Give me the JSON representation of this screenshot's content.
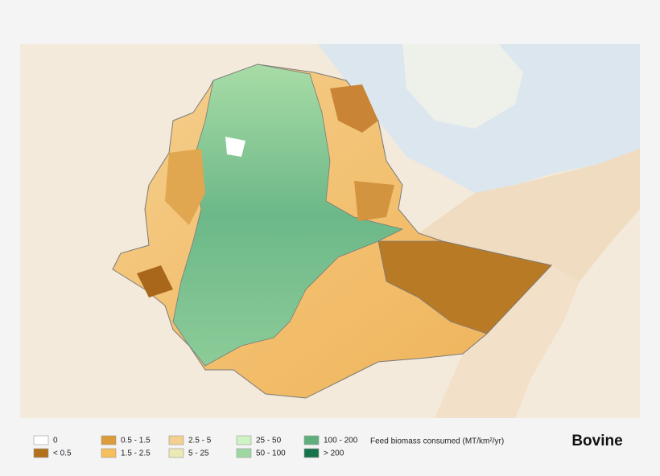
{
  "legend": {
    "title": "Feed biomass consumed (MT/km²/yr)",
    "items": [
      {
        "label": "0",
        "color": "#ffffff"
      },
      {
        "label": "< 0.5",
        "color": "#b26f1c"
      },
      {
        "label": "0.5 - 1.5",
        "color": "#dc9c3c"
      },
      {
        "label": "1.5 - 2.5",
        "color": "#f6be5c"
      },
      {
        "label": "2.5 - 5",
        "color": "#f4cf8e"
      },
      {
        "label": "5 - 25",
        "color": "#ede8b4"
      },
      {
        "label": "25 - 50",
        "color": "#cff2c2"
      },
      {
        "label": "50 - 100",
        "color": "#9fd7a2"
      },
      {
        "label": "100 - 200",
        "color": "#5faf7c"
      },
      {
        "label": "> 200",
        "color": "#16734c"
      }
    ]
  },
  "label": "Bovine"
}
